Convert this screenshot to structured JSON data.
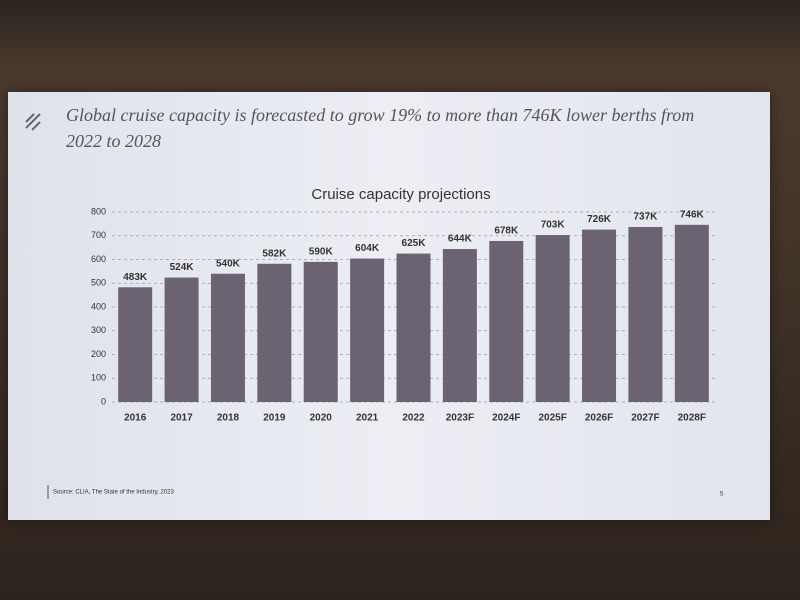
{
  "slide": {
    "title": "Global cruise capacity is forecasted to grow 19% to more than 746K lower berths from 2022 to 2028",
    "source": "Source: CLIA, The State of the Industry, 2023",
    "page_number": "5"
  },
  "chart_data": {
    "type": "bar",
    "title": "Cruise capacity projections",
    "categories": [
      "2016",
      "2017",
      "2018",
      "2019",
      "2020",
      "2021",
      "2022",
      "2023F",
      "2024F",
      "2025F",
      "2026F",
      "2027F",
      "2028F"
    ],
    "values": [
      483,
      524,
      540,
      582,
      590,
      604,
      625,
      644,
      678,
      703,
      726,
      737,
      746
    ],
    "value_labels": [
      "483K",
      "524K",
      "540K",
      "582K",
      "590K",
      "604K",
      "625K",
      "644K",
      "678K",
      "703K",
      "726K",
      "737K",
      "746K"
    ],
    "color": "#6b6371",
    "ylim": [
      0,
      800
    ],
    "yticks": [
      0,
      100,
      200,
      300,
      400,
      500,
      600,
      700,
      800
    ],
    "grid": true
  }
}
